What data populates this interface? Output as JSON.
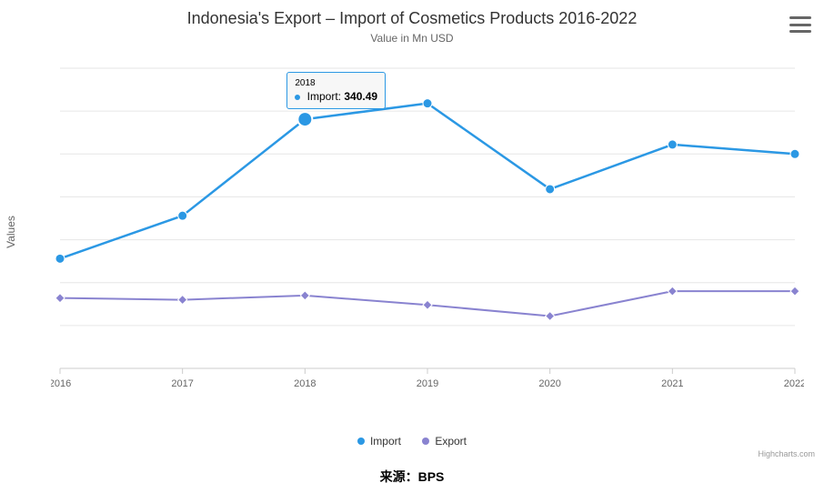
{
  "chart": {
    "title": "Indonesia's Export – Import of Cosmetics Products 2016-2022",
    "title_fontsize": 18,
    "subtitle": "Value in Mn USD",
    "subtitle_fontsize": 12,
    "y_axis_title": "Values",
    "type": "line",
    "background_color": "#ffffff",
    "plot_border_color": "#cccccc",
    "grid_color": "#e6e6e6",
    "categories": [
      "2016",
      "2017",
      "2018",
      "2019",
      "2020",
      "2021",
      "2022"
    ],
    "ylim": [
      50,
      400
    ],
    "ytick_step": 50,
    "yticks": [
      50,
      100,
      150,
      200,
      250,
      300,
      350,
      400
    ],
    "series": [
      {
        "name": "Import",
        "color": "#2b98e4",
        "marker": "circle",
        "marker_size": 5,
        "line_width": 2.5,
        "data": [
          178,
          228,
          340.49,
          359,
          259,
          311,
          300
        ]
      },
      {
        "name": "Export",
        "color": "#8983d0",
        "marker": "diamond",
        "marker_size": 5,
        "line_width": 2,
        "data": [
          132,
          130,
          135,
          124,
          111,
          140,
          140
        ]
      }
    ],
    "tooltip": {
      "category": "2018",
      "series_name": "Import",
      "series_color": "#2b98e4",
      "value_label": "Import:",
      "value": "340.49"
    },
    "legend_items": [
      "Import",
      "Export"
    ],
    "credits": "Highcharts.com",
    "menu_color": "#666666"
  },
  "source": "来源：BPS"
}
